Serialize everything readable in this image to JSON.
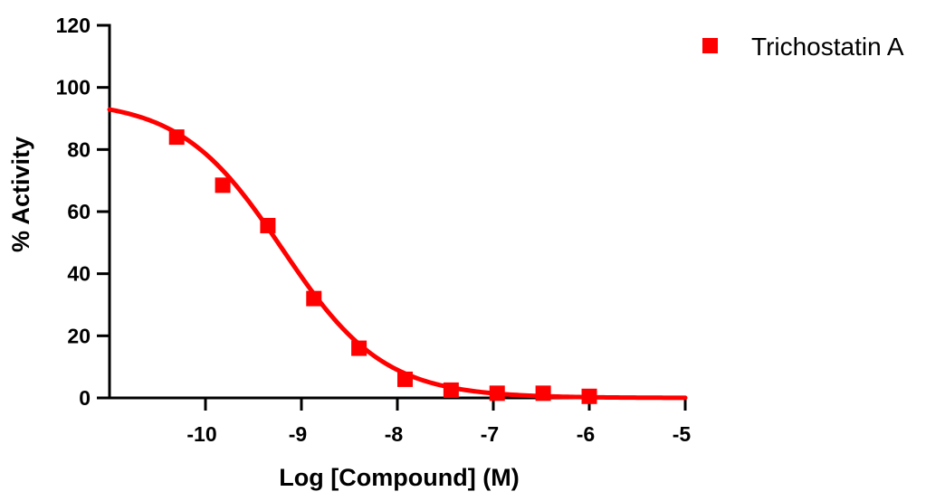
{
  "chart_data": {
    "type": "scatter",
    "title": "",
    "xlabel": "Log [Compound] (M)",
    "ylabel": "% Activity",
    "xlim": [
      -11,
      -5
    ],
    "ylim": [
      0,
      120
    ],
    "x_ticks": [
      -10,
      -9,
      -8,
      -7,
      -6,
      -5
    ],
    "x_tick_labels": [
      "-10",
      "-9",
      "-8",
      "-7",
      "-6",
      "-5"
    ],
    "y_ticks": [
      0,
      20,
      40,
      60,
      80,
      100,
      120
    ],
    "y_tick_labels": [
      "0",
      "20",
      "40",
      "60",
      "80",
      "100",
      "120"
    ],
    "grid": false,
    "legend_position": "top-right",
    "series": [
      {
        "name": "Trichostatin A",
        "color": "#ff0000",
        "marker": "square",
        "x": [
          -10.3,
          -9.82,
          -9.35,
          -8.87,
          -8.4,
          -7.92,
          -7.44,
          -6.96,
          -6.48,
          -6.0
        ],
        "y": [
          84,
          68.5,
          55.5,
          32,
          16,
          6,
          2.5,
          1.5,
          1.5,
          0.5
        ],
        "fit": {
          "model": "four-parameter logistic",
          "top": 96,
          "bottom": 0,
          "log_ic50": -9.2,
          "hill_slope": -0.82,
          "x_range": [
            -11,
            -5
          ]
        }
      }
    ]
  }
}
